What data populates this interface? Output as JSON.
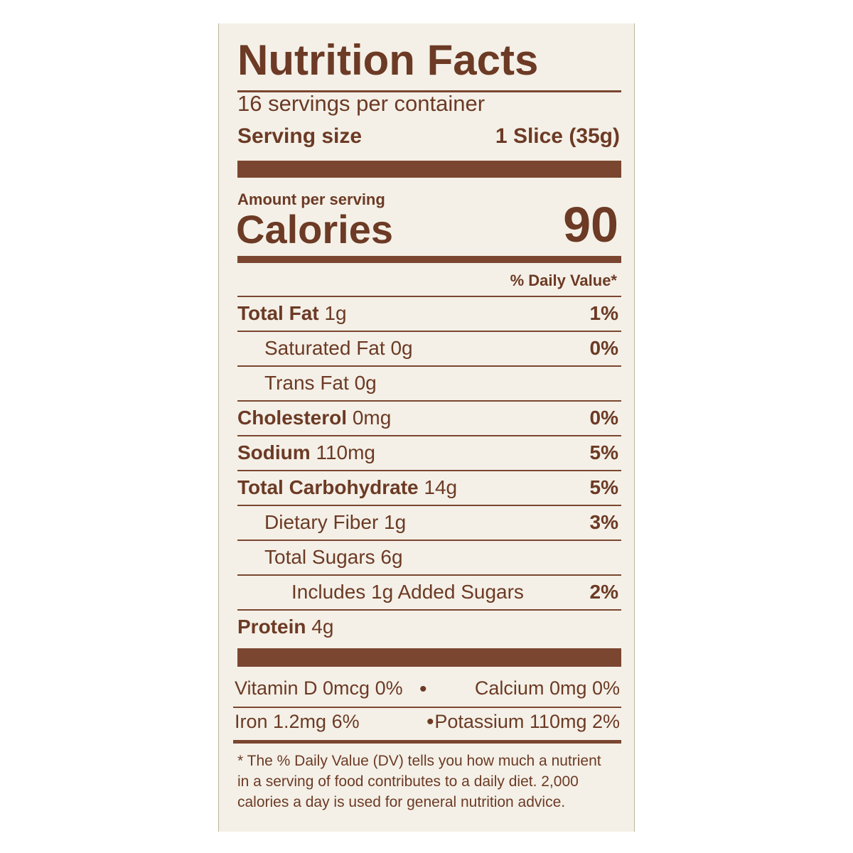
{
  "header": {
    "title": "Nutrition Facts",
    "servings": "16 servings per container",
    "serving_size_label": "Serving size",
    "serving_size_value": "1 Slice (35g)"
  },
  "calories": {
    "amount_per_serving": "Amount per serving",
    "label": "Calories",
    "value": "90"
  },
  "daily_value_header": "% Daily Value*",
  "nutrients": [
    {
      "name": "Total Fat",
      "amount": "1g",
      "dv": "1%"
    },
    {
      "name": "Saturated Fat",
      "amount": "0g",
      "dv": "0%"
    },
    {
      "name": "Trans Fat",
      "amount": "0g"
    },
    {
      "name": "Cholesterol",
      "amount": "0mg",
      "dv": "0%"
    },
    {
      "name": "Sodium",
      "amount": "110mg",
      "dv": "5%"
    },
    {
      "name": "Total Carbohydrate",
      "amount": "14g",
      "dv": "5%"
    },
    {
      "name": "Dietary Fiber",
      "amount": "1g",
      "dv": "3%"
    },
    {
      "name": "Total Sugars",
      "amount": "6g"
    },
    {
      "name": "Includes 1g Added Sugars",
      "dv": "2%"
    },
    {
      "name": "Protein",
      "amount": "4g"
    }
  ],
  "vitamins": [
    [
      "Vitamin D 0mcg 0%",
      "Calcium 0mg 0%"
    ],
    [
      "Iron 1.2mg 6%",
      "Potassium 110mg 2%"
    ]
  ],
  "footnote": [
    "* The % Daily Value (DV) tells you how much a nutrient",
    "in a serving of food contributes to a daily diet. 2,000",
    "calories a day is used for general nutrition advice."
  ]
}
